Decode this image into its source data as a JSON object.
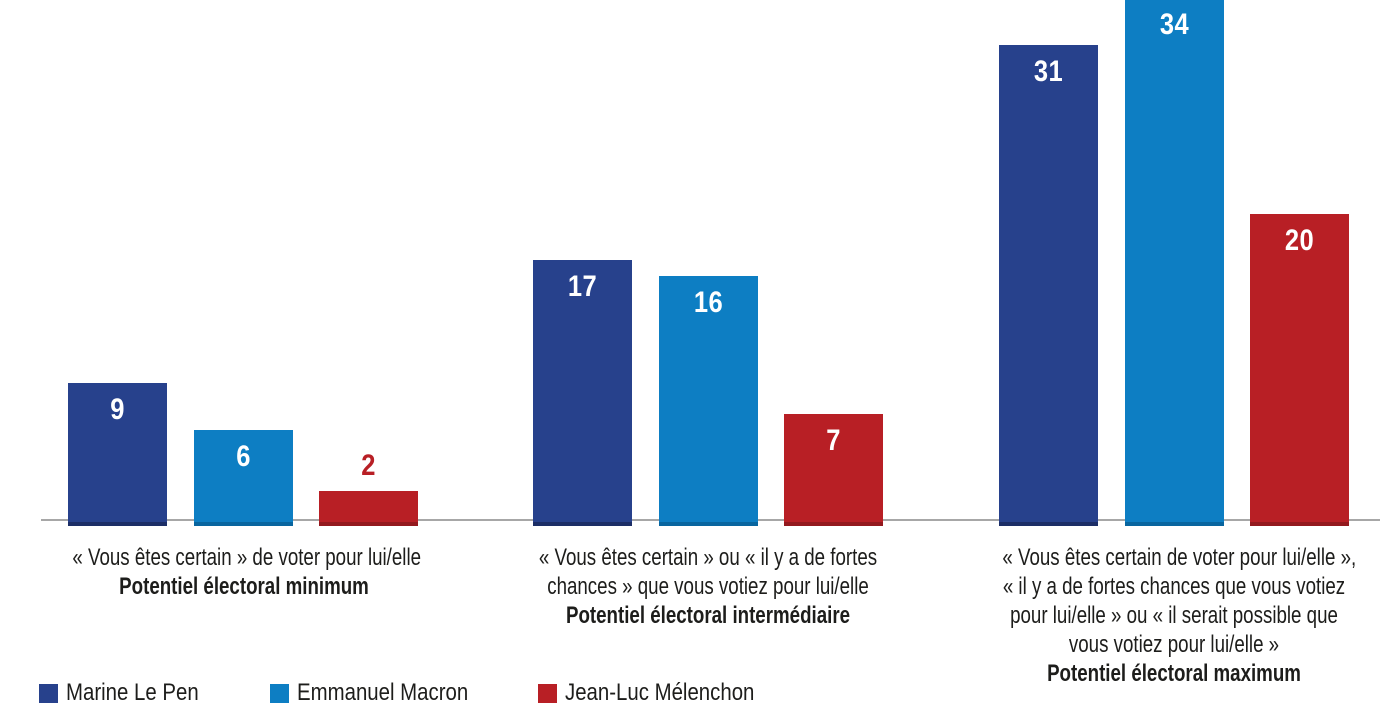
{
  "chart_data": {
    "type": "bar",
    "title": "",
    "grid": false,
    "y_axis_visible": false,
    "value_labels": "on bars",
    "ylim": [
      0,
      34
    ],
    "note": "top of tallest bar (34) is clipped by the image edge",
    "legend_position": "bottom-left",
    "axis_line_color": "#a7a7a7",
    "text_color": "#1d1d1b",
    "value_label_color_inside": "#ffffff",
    "series": [
      {
        "name": "Marine Le Pen",
        "color": "#27418c",
        "color_dark": "#1c2e66",
        "values": [
          9,
          17,
          31
        ]
      },
      {
        "name": "Emmanuel Macron",
        "color": "#0d7ec3",
        "color_dark": "#08659f",
        "values": [
          6,
          16,
          34
        ]
      },
      {
        "name": "Jean-Luc Mélenchon",
        "color": "#b81f25",
        "color_dark": "#93191e",
        "values": [
          2,
          7,
          20
        ]
      }
    ],
    "categories": [
      {
        "caption_lines": [
          "« Vous êtes certain » de voter pour lui/elle"
        ],
        "caption_bold": "Potentiel électoral minimum"
      },
      {
        "caption_lines": [
          "« Vous êtes certain » ou « il y a de fortes",
          "chances » que vous votiez pour lui/elle"
        ],
        "caption_bold": "Potentiel électoral intermédiaire"
      },
      {
        "caption_lines": [
          "« Vous êtes certain de voter pour lui/elle »,",
          "« il y a de fortes chances que vous votiez",
          "pour lui/elle » ou « il serait possible que",
          "vous votiez pour lui/elle »"
        ],
        "caption_bold": "Potentiel électoral maximum"
      }
    ]
  }
}
